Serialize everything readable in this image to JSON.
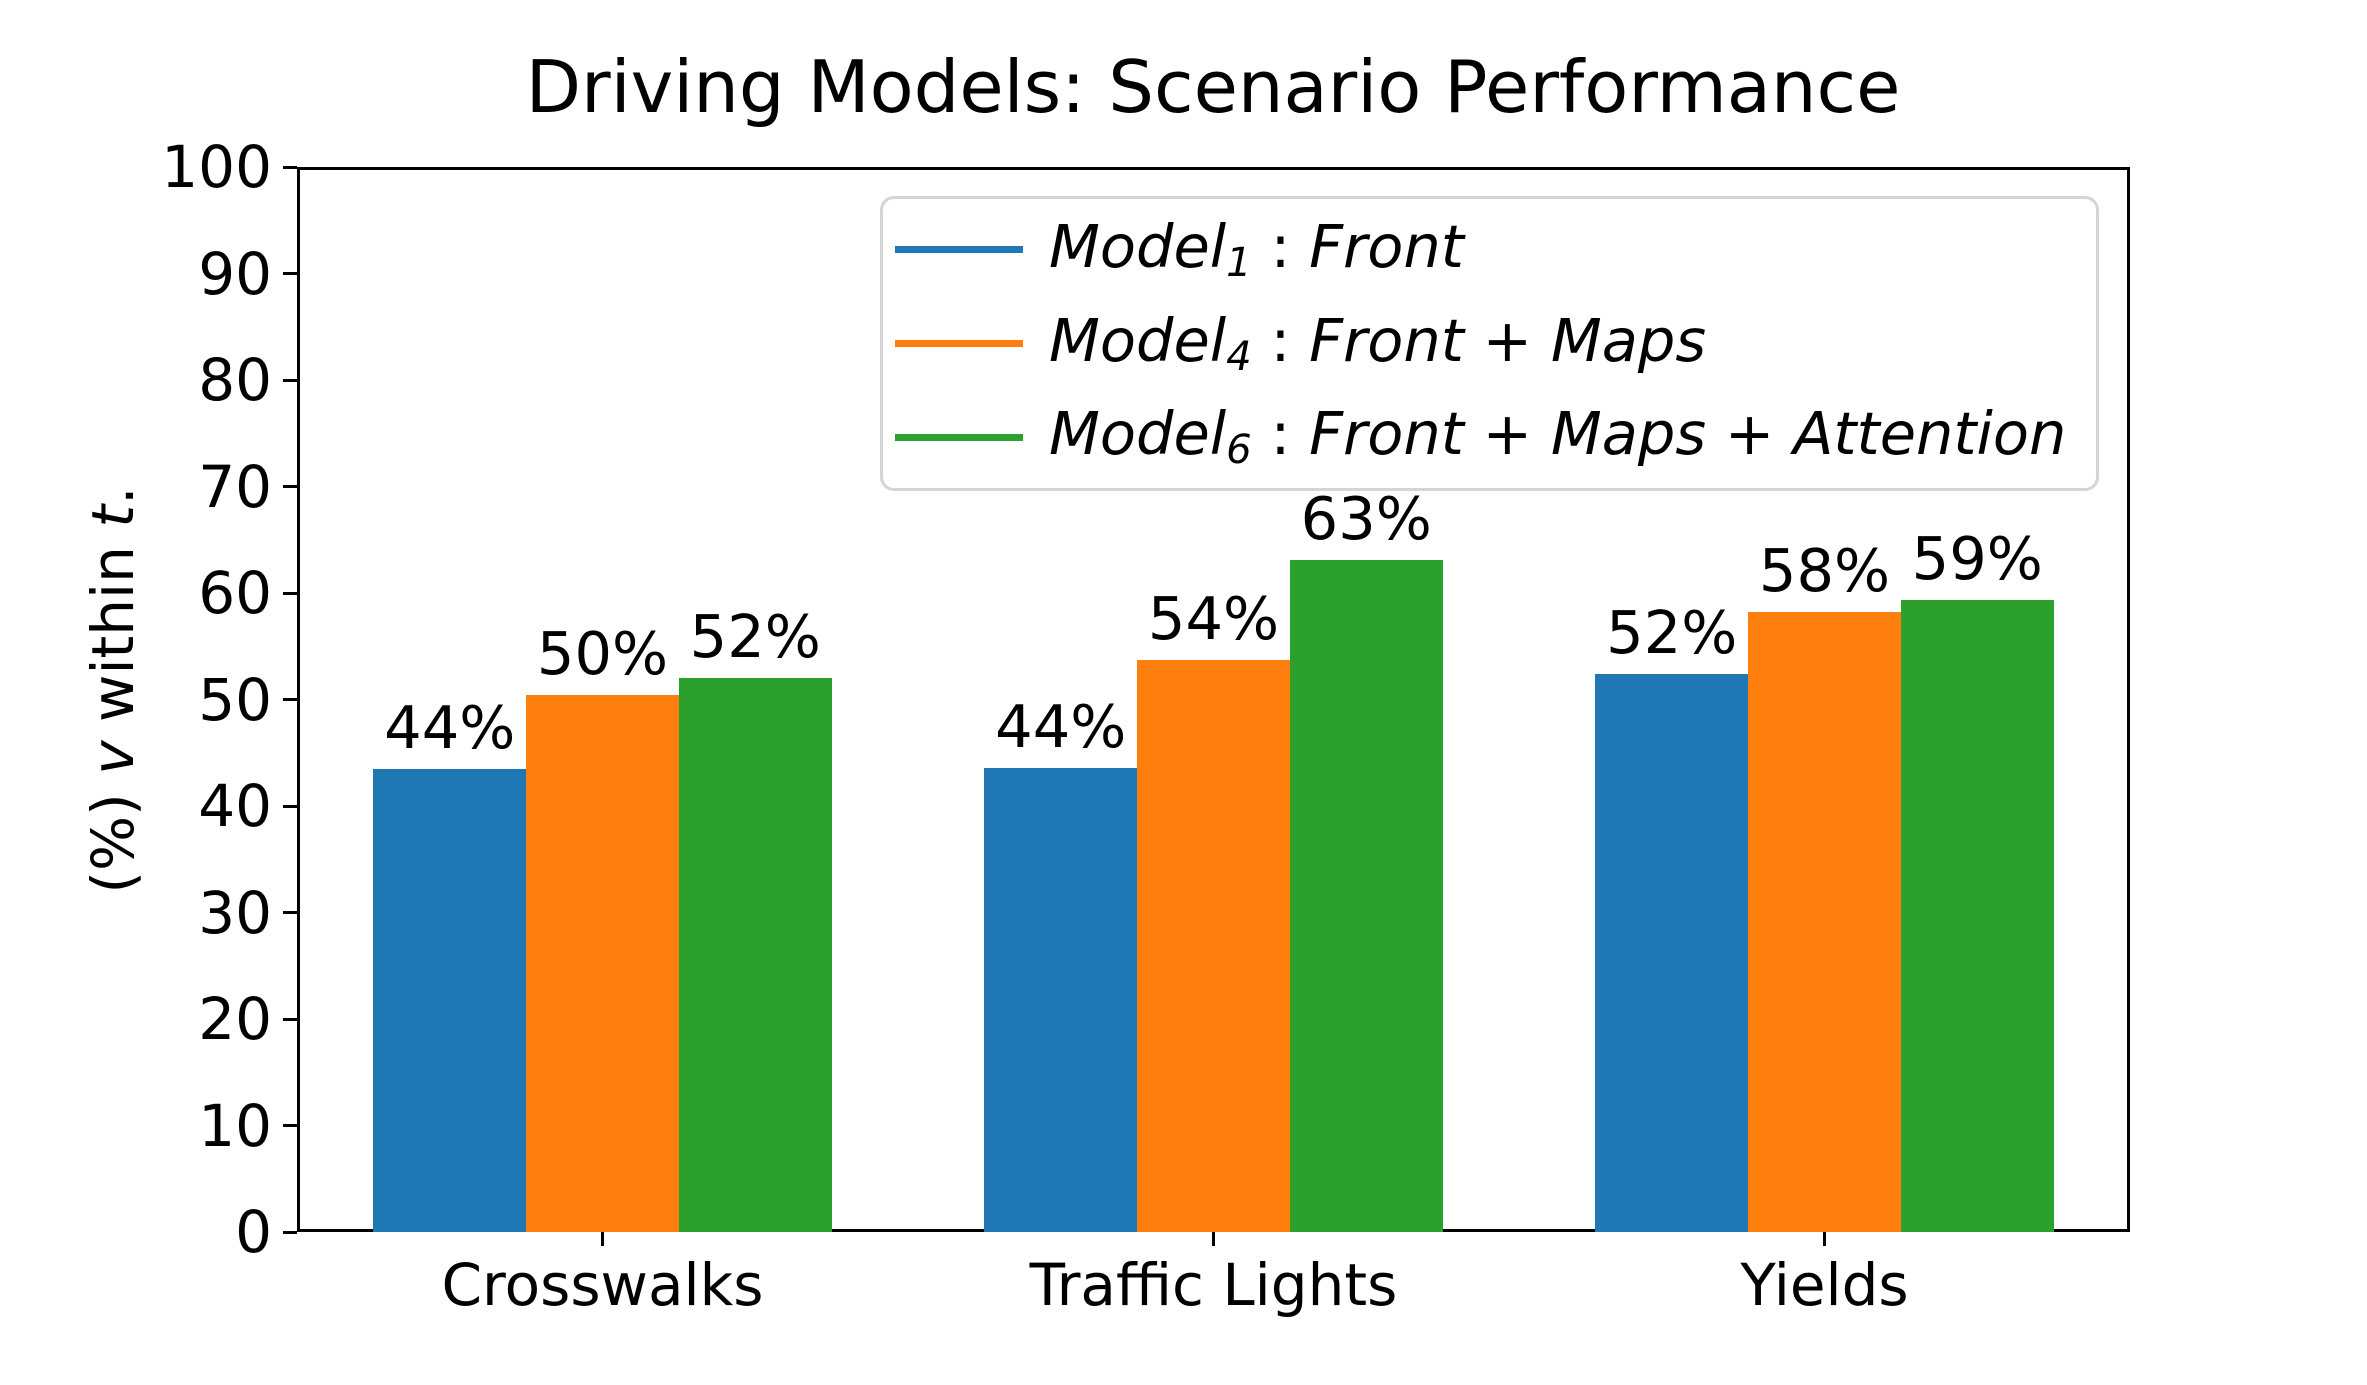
{
  "chart_data": {
    "type": "bar",
    "title": "Driving Models: Scenario Performance",
    "categories": [
      "Crosswalks",
      "Traffic Lights",
      "Yields"
    ],
    "series": [
      {
        "name": "Model_1 : Front",
        "color": "#1f77b4",
        "values": [
          43.5,
          43.6,
          52.4
        ],
        "bar_labels": [
          "44%",
          "44%",
          "52%"
        ],
        "legend_segments": [
          {
            "text": "Model",
            "italic": true
          },
          {
            "text": "1",
            "italic": true,
            "subscript": true
          },
          {
            "text": " : ",
            "italic": false
          },
          {
            "text": "Front",
            "italic": true
          }
        ]
      },
      {
        "name": "Model_4 : Front + Maps",
        "color": "#ff7f0e",
        "values": [
          50.4,
          53.7,
          58.2
        ],
        "bar_labels": [
          "50%",
          "54%",
          "58%"
        ],
        "legend_segments": [
          {
            "text": "Model",
            "italic": true
          },
          {
            "text": "4",
            "italic": true,
            "subscript": true
          },
          {
            "text": " : ",
            "italic": false
          },
          {
            "text": "Front",
            "italic": true
          },
          {
            "text": " + ",
            "italic": false
          },
          {
            "text": "Maps",
            "italic": true
          }
        ]
      },
      {
        "name": "Model_6 : Front + Maps + Attention",
        "color": "#2ca02c",
        "values": [
          52.0,
          63.1,
          59.3
        ],
        "bar_labels": [
          "52%",
          "63%",
          "59%"
        ],
        "legend_segments": [
          {
            "text": "Model",
            "italic": true
          },
          {
            "text": "6",
            "italic": true,
            "subscript": true
          },
          {
            "text": " : ",
            "italic": false
          },
          {
            "text": "Front",
            "italic": true
          },
          {
            "text": " + ",
            "italic": false
          },
          {
            "text": "Maps",
            "italic": true
          },
          {
            "text": " + ",
            "italic": false
          },
          {
            "text": "Attention",
            "italic": true
          }
        ]
      }
    ],
    "ylabel": "(%) v within t.",
    "ylabel_segments": [
      {
        "text": "(%) ",
        "italic": false
      },
      {
        "text": "v",
        "italic": true
      },
      {
        "text": " within ",
        "italic": false
      },
      {
        "text": "t",
        "italic": true
      },
      {
        "text": ".",
        "italic": false
      }
    ],
    "xlabel": "",
    "yticks": [
      0,
      10,
      20,
      30,
      40,
      50,
      60,
      70,
      80,
      90,
      100
    ],
    "ylim": [
      0,
      100
    ],
    "grid": false,
    "legend_position": "upper center-right, inside axes",
    "bar_width_fraction": 0.25,
    "axis_color": "#000000",
    "legend_border_color": "#d5d5d5",
    "background_color": "#ffffff"
  }
}
